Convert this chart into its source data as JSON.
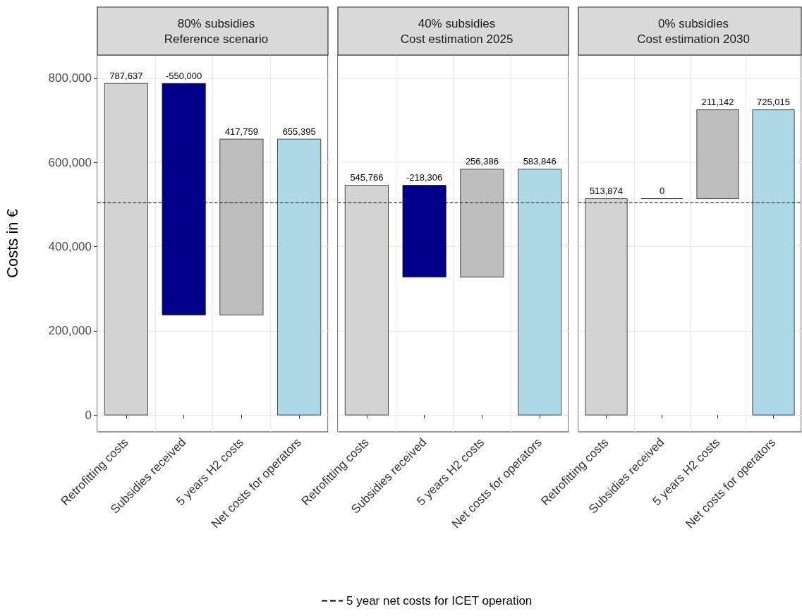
{
  "chart_data": [
    {
      "type": "bar",
      "title": "80% subsidies",
      "subtitle": "Reference scenario",
      "ylabel": "Costs in €",
      "categories": [
        "Retrofitting costs",
        "Subsidies received",
        "5 years H2 costs",
        "Net costs for operators"
      ],
      "values": [
        787637,
        -550000,
        417759,
        655395
      ],
      "base": [
        0,
        787637,
        237637,
        0
      ],
      "value_labels": [
        "787,637",
        "-550,000",
        "417,759",
        "655,395"
      ],
      "colors": [
        "#d3d3d3",
        "#00008b",
        "#bebebe",
        "#add8e6"
      ],
      "ylim": [
        -40000,
        855000
      ],
      "yticks": [
        {
          "value": 0,
          "label": "0"
        },
        {
          "value": 200000,
          "label": "200,000"
        },
        {
          "value": 400000,
          "label": "400,000"
        },
        {
          "value": 600000,
          "label": "600,000"
        },
        {
          "value": 800000,
          "label": "800,000"
        }
      ],
      "ref_lines": [
        {
          "axis": "y",
          "value": 505000,
          "label": "5 year net costs for ICET operation",
          "color": "#000000",
          "line_style": "dashed"
        }
      ],
      "grid": true,
      "legend": "bottom"
    },
    {
      "type": "bar",
      "title": "40% subsidies",
      "subtitle": "Cost estimation 2025",
      "categories": [
        "Retrofitting costs",
        "Subsidies received",
        "5 years H2 costs",
        "Net costs for operators"
      ],
      "values": [
        545766,
        -218306,
        256386,
        583846
      ],
      "base": [
        0,
        545766,
        327460,
        0
      ],
      "value_labels": [
        "545,766",
        "-218,306",
        "256,386",
        "583,846"
      ],
      "colors": [
        "#d3d3d3",
        "#00008b",
        "#bebebe",
        "#add8e6"
      ],
      "ylim": [
        -40000,
        855000
      ],
      "yticks": [
        0,
        200000,
        400000,
        600000,
        800000
      ],
      "ref_lines": [
        {
          "axis": "y",
          "value": 505000,
          "color": "#000000",
          "line_style": "dashed"
        }
      ],
      "grid": true,
      "tick_labels": "x"
    },
    {
      "type": "bar",
      "title": "0% subsidies",
      "subtitle": "Cost estimation 2030",
      "categories": [
        "Retrofitting costs",
        "Subsidies received",
        "5 years H2 costs",
        "Net costs for operators"
      ],
      "values": [
        513874,
        0,
        211142,
        725015
      ],
      "base": [
        0,
        513874,
        513874,
        0
      ],
      "value_labels": [
        "513,874",
        "0",
        "211,142",
        "725,015"
      ],
      "colors": [
        "#d3d3d3",
        "#222222",
        "#bebebe",
        "#add8e6"
      ],
      "ylim": [
        -40000,
        855000
      ],
      "yticks": [
        0,
        200000,
        400000,
        600000,
        800000
      ],
      "ref_lines": [
        {
          "axis": "y",
          "value": 505000,
          "color": "#000000",
          "line_style": "dashed"
        }
      ],
      "grid": true,
      "tick_labels": "x"
    }
  ]
}
